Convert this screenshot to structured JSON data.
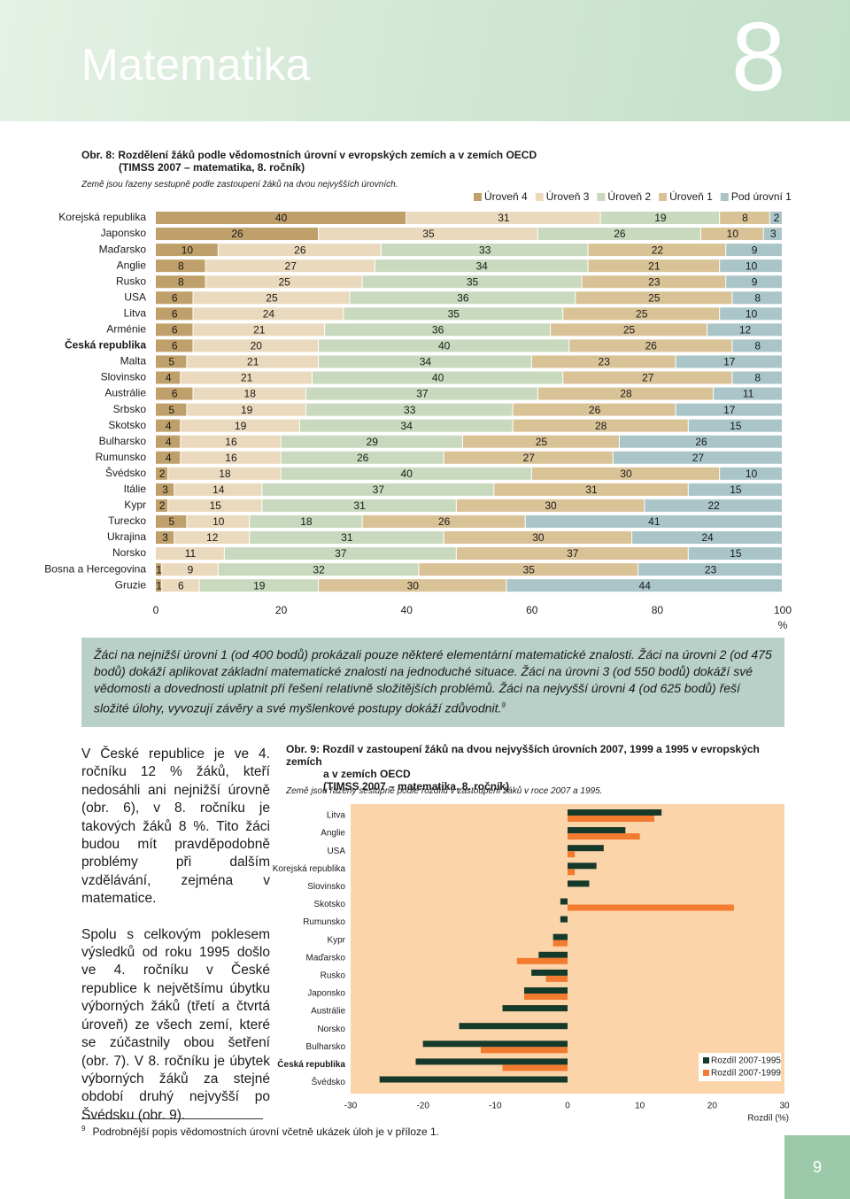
{
  "header": {
    "title": "Matematika",
    "chapter": "8"
  },
  "chart_data": [
    {
      "type": "bar",
      "orientation": "horizontal",
      "stacked": true,
      "title": [
        "Obr. 8: Rozdělení žáků podle vědomostních úrovní v evropských zemích a v zemích OECD",
        "(TIMSS 2007 – matematika, 8. ročník)"
      ],
      "subtitle": "Země jsou řazeny sestupně podle zastoupení žáků na dvou nejvyšších úrovních.",
      "categories": [
        "Korejská republika",
        "Japonsko",
        "Maďarsko",
        "Anglie",
        "Rusko",
        "USA",
        "Litva",
        "Arménie",
        "Česká republika",
        "Malta",
        "Slovinsko",
        "Austrálie",
        "Srbsko",
        "Skotsko",
        "Bulharsko",
        "Rumunsko",
        "Švédsko",
        "Itálie",
        "Kypr",
        "Turecko",
        "Ukrajina",
        "Norsko",
        "Bosna a Hercegovina",
        "Gruzie"
      ],
      "series": [
        {
          "name": "Úroveň 4",
          "color": "#bfa06a",
          "values": [
            40,
            26,
            10,
            8,
            8,
            6,
            6,
            6,
            6,
            5,
            4,
            6,
            5,
            4,
            4,
            4,
            2,
            3,
            2,
            5,
            3,
            null,
            1,
            1
          ]
        },
        {
          "name": "Úroveň 3",
          "color": "#ebd9bd",
          "values": [
            31,
            35,
            26,
            27,
            25,
            25,
            24,
            21,
            20,
            21,
            21,
            18,
            19,
            19,
            16,
            16,
            18,
            14,
            15,
            10,
            12,
            11,
            9,
            6
          ]
        },
        {
          "name": "Úroveň 2",
          "color": "#c8d9be",
          "values": [
            19,
            26,
            33,
            34,
            35,
            36,
            35,
            36,
            40,
            34,
            40,
            37,
            33,
            34,
            29,
            26,
            40,
            37,
            31,
            18,
            31,
            37,
            32,
            19
          ]
        },
        {
          "name": "Úroveň 1",
          "color": "#d9c296",
          "values": [
            8,
            10,
            22,
            21,
            23,
            25,
            25,
            25,
            26,
            23,
            27,
            28,
            26,
            28,
            25,
            27,
            30,
            31,
            30,
            26,
            30,
            37,
            35,
            30
          ]
        },
        {
          "name": "Pod úrovní 1",
          "color": "#a9c5c8",
          "values": [
            2,
            3,
            9,
            10,
            9,
            8,
            10,
            12,
            8,
            17,
            8,
            11,
            17,
            15,
            26,
            27,
            10,
            15,
            22,
            41,
            24,
            15,
            23,
            44
          ]
        }
      ],
      "xlim": [
        0,
        100
      ],
      "xticks": [
        0,
        20,
        40,
        60,
        80,
        100
      ],
      "x_unit": "%",
      "legend": "top-right"
    },
    {
      "type": "bar",
      "orientation": "horizontal",
      "stacked": false,
      "title": [
        "Obr. 9: Rozdíl v zastoupení žáků na dvou nejvyšších úrovních 2007, 1999 a 1995 v evropských zemích",
        "a v zemích OECD",
        "(TIMSS 2007 – matematika, 8. ročník)"
      ],
      "subtitle": "Země jsou řazeny sestupně podle rozdílu v zastoupení žáků v roce 2007 a 1995.",
      "categories": [
        "Litva",
        "Anglie",
        "USA",
        "Korejská republika",
        "Slovinsko",
        "Skotsko",
        "Rumunsko",
        "Kypr",
        "Maďarsko",
        "Rusko",
        "Japonsko",
        "Austrálie",
        "Norsko",
        "Bulharsko",
        "Česká republika",
        "Švédsko"
      ],
      "series": [
        {
          "name": "Rozdíl 2007-1995",
          "color": "#153a29",
          "values": [
            13,
            8,
            5,
            4,
            3,
            -1,
            -1,
            -2,
            -4,
            -5,
            -6,
            -9,
            -15,
            -20,
            -21,
            -26
          ]
        },
        {
          "name": "Rozdíl 2007-1999",
          "color": "#f27b30",
          "values": [
            12,
            10,
            1,
            1,
            null,
            23,
            null,
            -2,
            -7,
            -3,
            -6,
            null,
            null,
            -12,
            -9,
            null
          ]
        }
      ],
      "xlim": [
        -30,
        30
      ],
      "xticks": [
        -30,
        -20,
        -10,
        0,
        10,
        20,
        30
      ],
      "xlabel": "Rozdíl (%)",
      "legend": "bottom-right",
      "background": "#fcd4a9"
    }
  ],
  "info_box": {
    "text": "Žáci na nejnižší úrovni 1 (od 400 bodů) prokázali pouze některé elementární matematické znalosti. Žáci na úrovni 2 (od 475 bodů) dokáží aplikovat základní matematické znalosti na jednoduché situace. Žáci na úrovni 3 (od 550 bodů) dokáží své vědomosti a dovednosti uplatnit při řešení relativně složitějších problémů. Žáci na nejvyšší úrovni 4 (od 625 bodů) řeší složité úlohy, vyvozují závěry a své myšlenkové postupy dokáží zdůvodnit.",
    "footnote_ref": "9"
  },
  "body": {
    "paragraphs": [
      "V České republice je ve 4. ročníku 12 % žáků, kteří nedosáhli ani nejnižší úrovně (obr. 6), v 8. ročníku je takových žáků 8 %. Tito žáci budou mít pravděpodobně problémy při dalším vzdělávání, zejména v matematice.",
      "Spolu s celkovým poklesem výsledků od roku 1995 došlo ve 4. ročníku v České republice k největšímu úbytku výborných žáků (třetí a čtvrtá úroveň) ze všech zemí, které se zúčastnily obou šetření (obr. 7). V 8. ročníku je úbytek výborných žáků za stejné období druhý nejvyšší po Švédsku (obr. 9)."
    ]
  },
  "footnote": {
    "mark": "9",
    "text": "Podrobnější popis vědomostních úrovní včetně ukázek úloh je v příloze 1."
  },
  "page_number": "9"
}
